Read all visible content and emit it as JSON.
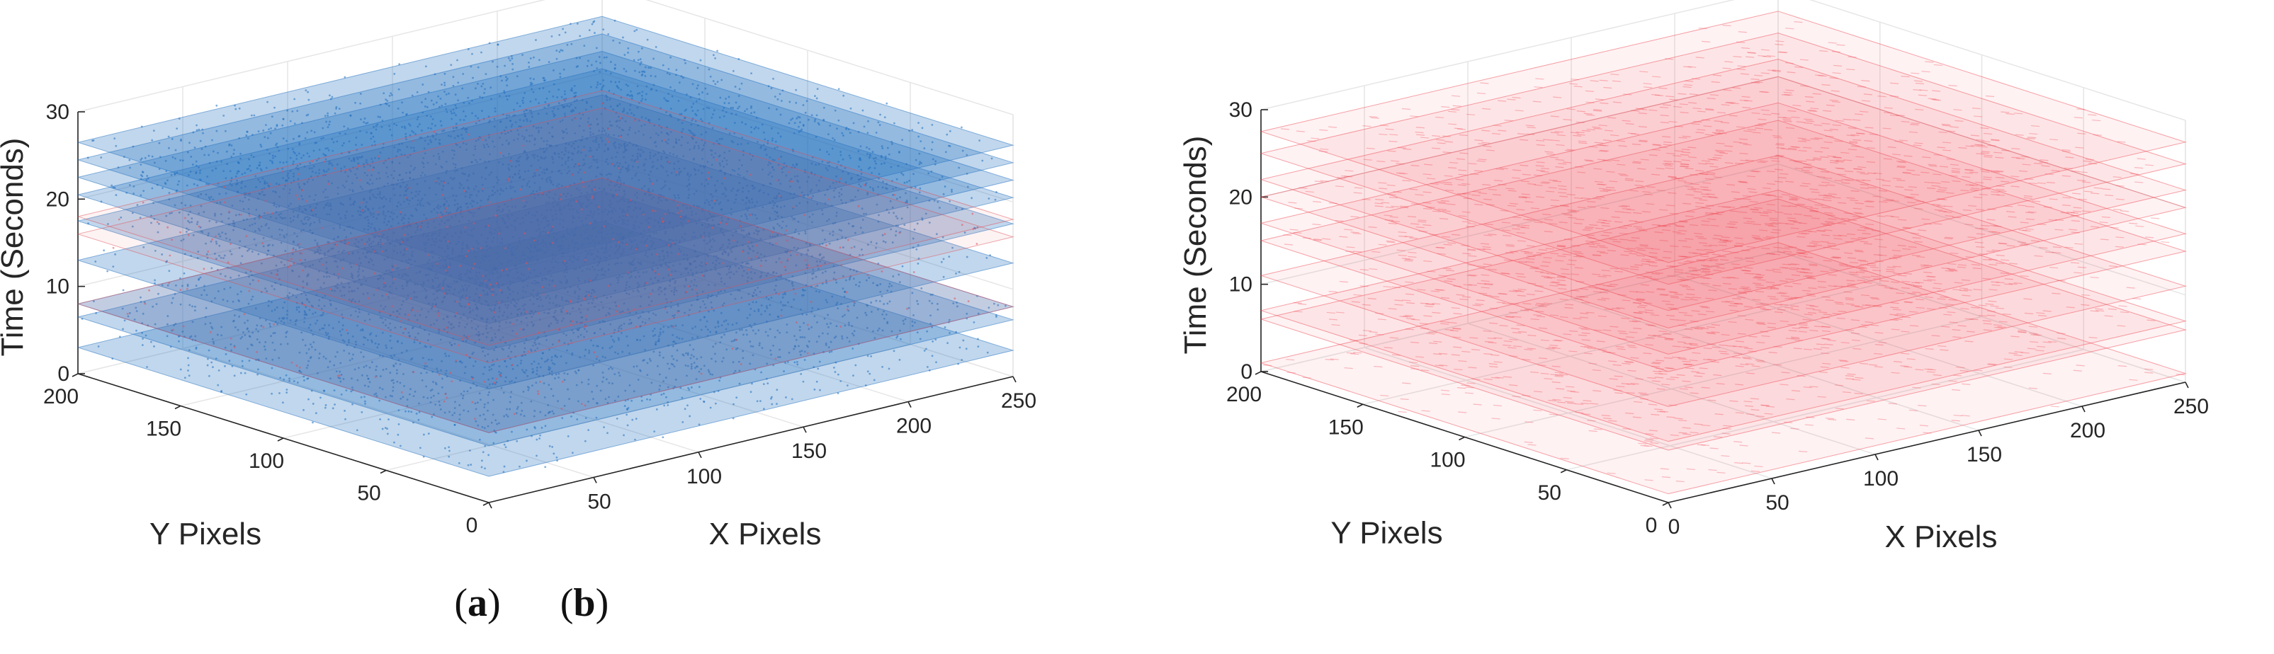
{
  "chart_data": [
    {
      "type": "scatter",
      "subtype": "3d-event-stream",
      "panel_label": "a",
      "xlabel": "X Pixels",
      "ylabel": "Y Pixels",
      "zlabel": "Time (Seconds)",
      "xlim": [
        0,
        250
      ],
      "ylim": [
        0,
        200
      ],
      "zlim": [
        0,
        30
      ],
      "xticks": [
        "50",
        "100",
        "150",
        "200",
        "250"
      ],
      "yticks": [
        "0",
        "50",
        "100",
        "150",
        "200"
      ],
      "zticks": [
        "0",
        "10",
        "20",
        "30"
      ],
      "grid": true,
      "series": [
        {
          "color": "#1f6fbf",
          "layer_times": [
            3,
            6.5,
            8,
            13,
            17.5,
            20.5,
            22.5,
            24.5,
            26.5
          ]
        },
        {
          "color": "#e0505a",
          "layer_times": [
            8,
            16,
            18
          ]
        }
      ]
    },
    {
      "type": "scatter",
      "subtype": "3d-event-stream",
      "panel_label": "b",
      "xlabel": "X Pixels",
      "ylabel": "Y Pixels",
      "zlabel": "Time (Seconds)",
      "xlim": [
        0,
        250
      ],
      "ylim": [
        0,
        200
      ],
      "zlim": [
        0,
        30
      ],
      "xticks": [
        "0",
        "50",
        "100",
        "150",
        "200",
        "250"
      ],
      "yticks": [
        "0",
        "50",
        "100",
        "150",
        "200"
      ],
      "zticks": [
        "0",
        "10",
        "20",
        "30"
      ],
      "grid": true,
      "series": [
        {
          "color": "#f0454f",
          "layer_times": [
            1,
            6,
            7,
            11,
            15,
            17,
            20,
            22,
            25,
            27.5
          ]
        }
      ]
    }
  ]
}
